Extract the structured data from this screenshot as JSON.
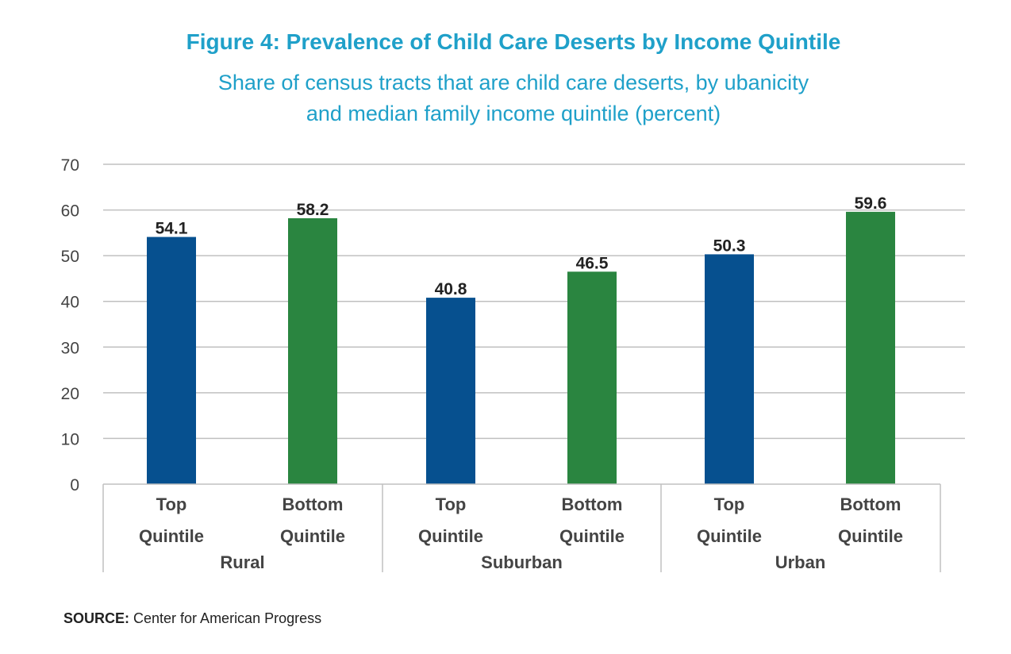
{
  "chart_data": {
    "type": "bar",
    "title": "Figure 4: Prevalence of Child Care Deserts by Income Quintile",
    "subtitle_lines": [
      "Share of census tracts that are child care deserts, by ubanicity",
      "and median family income quintile (percent)"
    ],
    "groups": [
      {
        "name": "Rural",
        "bars": [
          {
            "label_lines": [
              "Top",
              "Quintile"
            ],
            "value": 54.1,
            "color": "#06508f"
          },
          {
            "label_lines": [
              "Bottom",
              "Quintile"
            ],
            "value": 58.2,
            "color": "#2a8540"
          }
        ]
      },
      {
        "name": "Suburban",
        "bars": [
          {
            "label_lines": [
              "Top",
              "Quintile"
            ],
            "value": 40.8,
            "color": "#06508f"
          },
          {
            "label_lines": [
              "Bottom",
              "Quintile"
            ],
            "value": 46.5,
            "color": "#2a8540"
          }
        ]
      },
      {
        "name": "Urban",
        "bars": [
          {
            "label_lines": [
              "Top",
              "Quintile"
            ],
            "value": 50.3,
            "color": "#06508f"
          },
          {
            "label_lines": [
              "Bottom",
              "Quintile"
            ],
            "value": 59.6,
            "color": "#2a8540"
          }
        ]
      }
    ],
    "ylim": [
      0,
      70
    ],
    "yticks": [
      0,
      10,
      20,
      30,
      40,
      50,
      60,
      70
    ],
    "grid": true,
    "data_labels": true
  },
  "source": {
    "label": "SOURCE:",
    "text": " Center for American Progress"
  },
  "colors": {
    "title": "#1fa0c9",
    "top_quintile": "#06508f",
    "bottom_quintile": "#2a8540",
    "text": "#222222",
    "axis_text": "#444444",
    "grid": "#c0c0c0"
  }
}
